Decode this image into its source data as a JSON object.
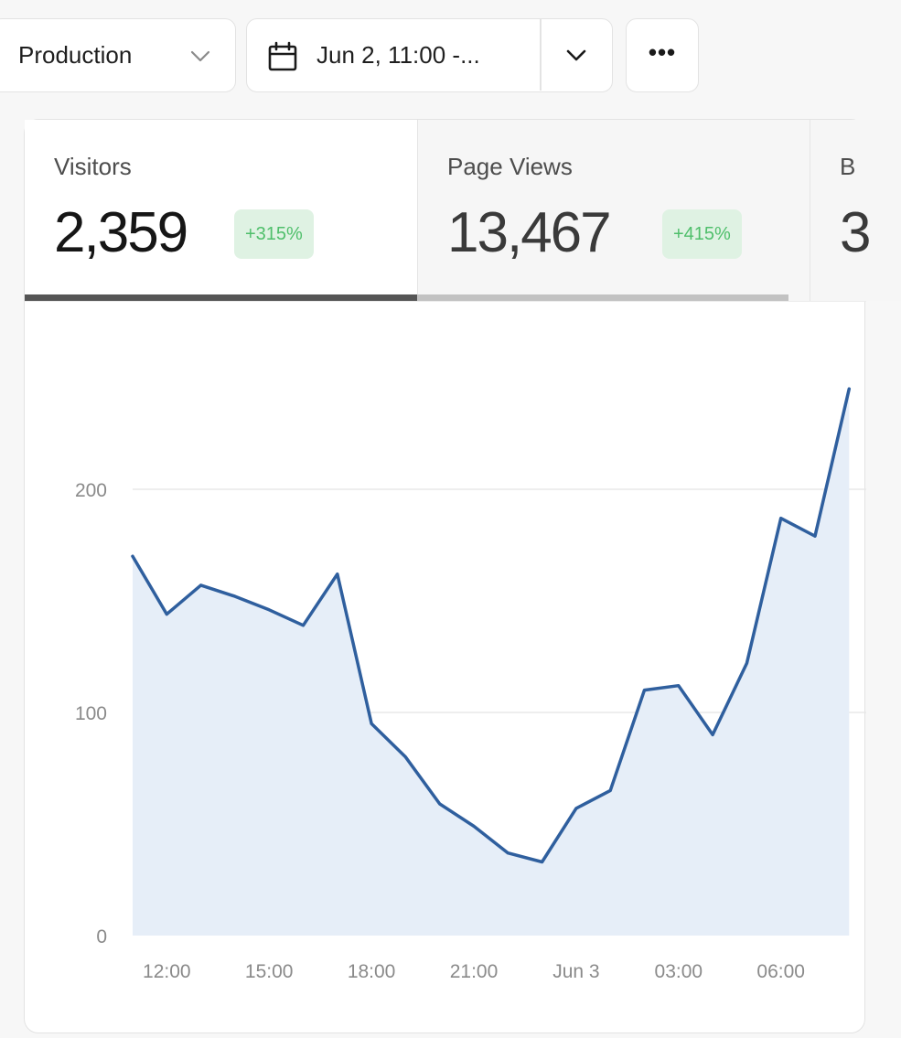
{
  "toolbar": {
    "environment": "Production",
    "date_range": "Jun 2, 11:00 -...",
    "more_label": "•••"
  },
  "tabs": [
    {
      "title": "Visitors",
      "value": "2,359",
      "change": "+315%"
    },
    {
      "title": "Page Views",
      "value": "13,467",
      "change": "+415%"
    },
    {
      "title": "B",
      "value": "3"
    }
  ],
  "colors": {
    "line": "#2f5f9e",
    "fill": "#e6eef8",
    "badge_bg": "#dff2e3",
    "badge_text": "#4fbf6b"
  },
  "chart_data": {
    "type": "area",
    "title": "",
    "xlabel": "",
    "ylabel": "",
    "yticks": [
      0,
      100,
      200
    ],
    "ylim": [
      0,
      245
    ],
    "grid": true,
    "xticks": [
      "12:00",
      "15:00",
      "18:00",
      "21:00",
      "Jun 3",
      "03:00",
      "06:00"
    ],
    "x": [
      "11:00",
      "12:00",
      "13:00",
      "14:00",
      "15:00",
      "16:00",
      "17:00",
      "18:00",
      "19:00",
      "20:00",
      "21:00",
      "22:00",
      "23:00",
      "00:00",
      "01:00",
      "02:00",
      "03:00",
      "04:00",
      "05:00",
      "06:00",
      "07:00",
      "08:00"
    ],
    "series": [
      {
        "values": [
          170,
          144,
          157,
          152,
          146,
          139,
          162,
          95,
          80,
          59,
          49,
          37,
          33,
          57,
          65,
          110,
          112,
          90,
          122,
          187,
          179,
          245
        ]
      }
    ]
  }
}
